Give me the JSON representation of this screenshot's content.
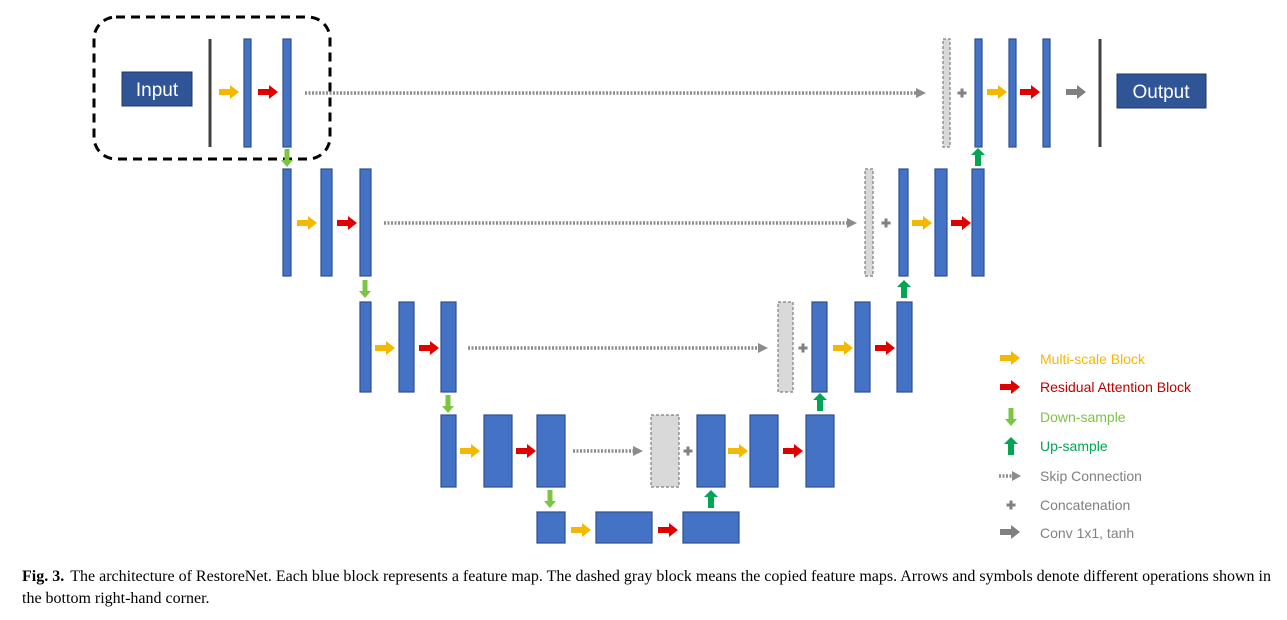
{
  "diagram": {
    "input_label": "Input",
    "output_label": "Output",
    "legend": [
      {
        "label": "Multi-scale Block",
        "color": "#F5B800",
        "icon": "yellow-right-arrow"
      },
      {
        "label": "Residual Attention Block",
        "color": "#E00000",
        "icon": "red-right-arrow"
      },
      {
        "label": "Down-sample",
        "color": "#7CC442",
        "icon": "green-down-arrow"
      },
      {
        "label": "Up-sample",
        "color": "#00A651",
        "icon": "dark-green-up-arrow"
      },
      {
        "label": "Skip Connection",
        "color": "#808080",
        "icon": "dashed-gray-arrow"
      },
      {
        "label": "Concatenation",
        "color": "#808080",
        "icon": "plus-symbol"
      },
      {
        "label": "Conv 1x1, tanh",
        "color": "#808080",
        "icon": "gray-right-arrow"
      }
    ]
  },
  "caption": {
    "label": "Fig. 3.",
    "text": "The architecture of RestoreNet. Each blue block represents a feature map. The dashed gray block means the copied feature maps. Arrows and symbols denote different operations shown in the bottom right-hand corner."
  }
}
